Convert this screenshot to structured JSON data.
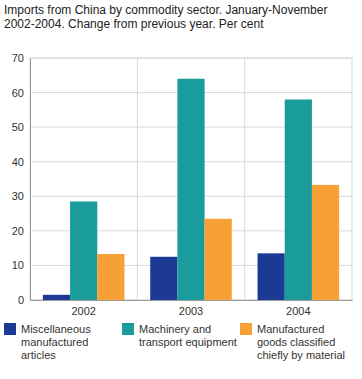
{
  "chart_data": {
    "type": "bar",
    "title": "Imports from China by commodity sector. January-November 2002-2004. Change from previous year. Per cent",
    "categories": [
      "2002",
      "2003",
      "2004"
    ],
    "series": [
      {
        "name": "Miscellaneous manufactured articles",
        "color": "#1c3a94",
        "values": [
          1.5,
          12.5,
          13.5
        ]
      },
      {
        "name": "Machinery and transport equipment",
        "color": "#1a9c9c",
        "values": [
          28.5,
          64,
          58
        ]
      },
      {
        "name": "Manufactured goods classified chiefly by material",
        "color": "#f7a035",
        "values": [
          13.3,
          23.5,
          33.3
        ]
      }
    ],
    "ylim": [
      0,
      70
    ],
    "yticks": [
      0,
      10,
      20,
      30,
      40,
      50,
      60,
      70
    ],
    "grid": true,
    "legend": "bottom"
  }
}
